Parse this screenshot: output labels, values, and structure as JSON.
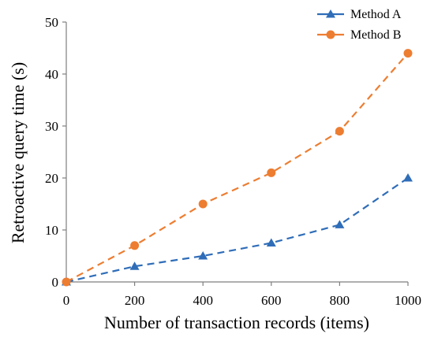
{
  "chart_data": {
    "type": "line",
    "title": "",
    "xlabel": "Number of transaction records (items)",
    "ylabel": "Retroactive query time (s)",
    "x": [
      0,
      200,
      400,
      600,
      800,
      1000
    ],
    "xlim": [
      0,
      1000
    ],
    "ylim": [
      0,
      50
    ],
    "xticks": [
      "0",
      "200",
      "400",
      "600",
      "800",
      "1000"
    ],
    "yticks": [
      "0",
      "10",
      "20",
      "30",
      "40",
      "50"
    ],
    "grid": false,
    "legend_position": "top-right",
    "series": [
      {
        "name": "Method A",
        "values": [
          0,
          3,
          5,
          7.5,
          11,
          20
        ],
        "color": "#2F6DB8",
        "marker": "triangle",
        "line_style": "dashed"
      },
      {
        "name": "Method B",
        "values": [
          0,
          7,
          15,
          21,
          29,
          44
        ],
        "color": "#ED7D31",
        "marker": "circle",
        "line_style": "dashed"
      }
    ]
  }
}
